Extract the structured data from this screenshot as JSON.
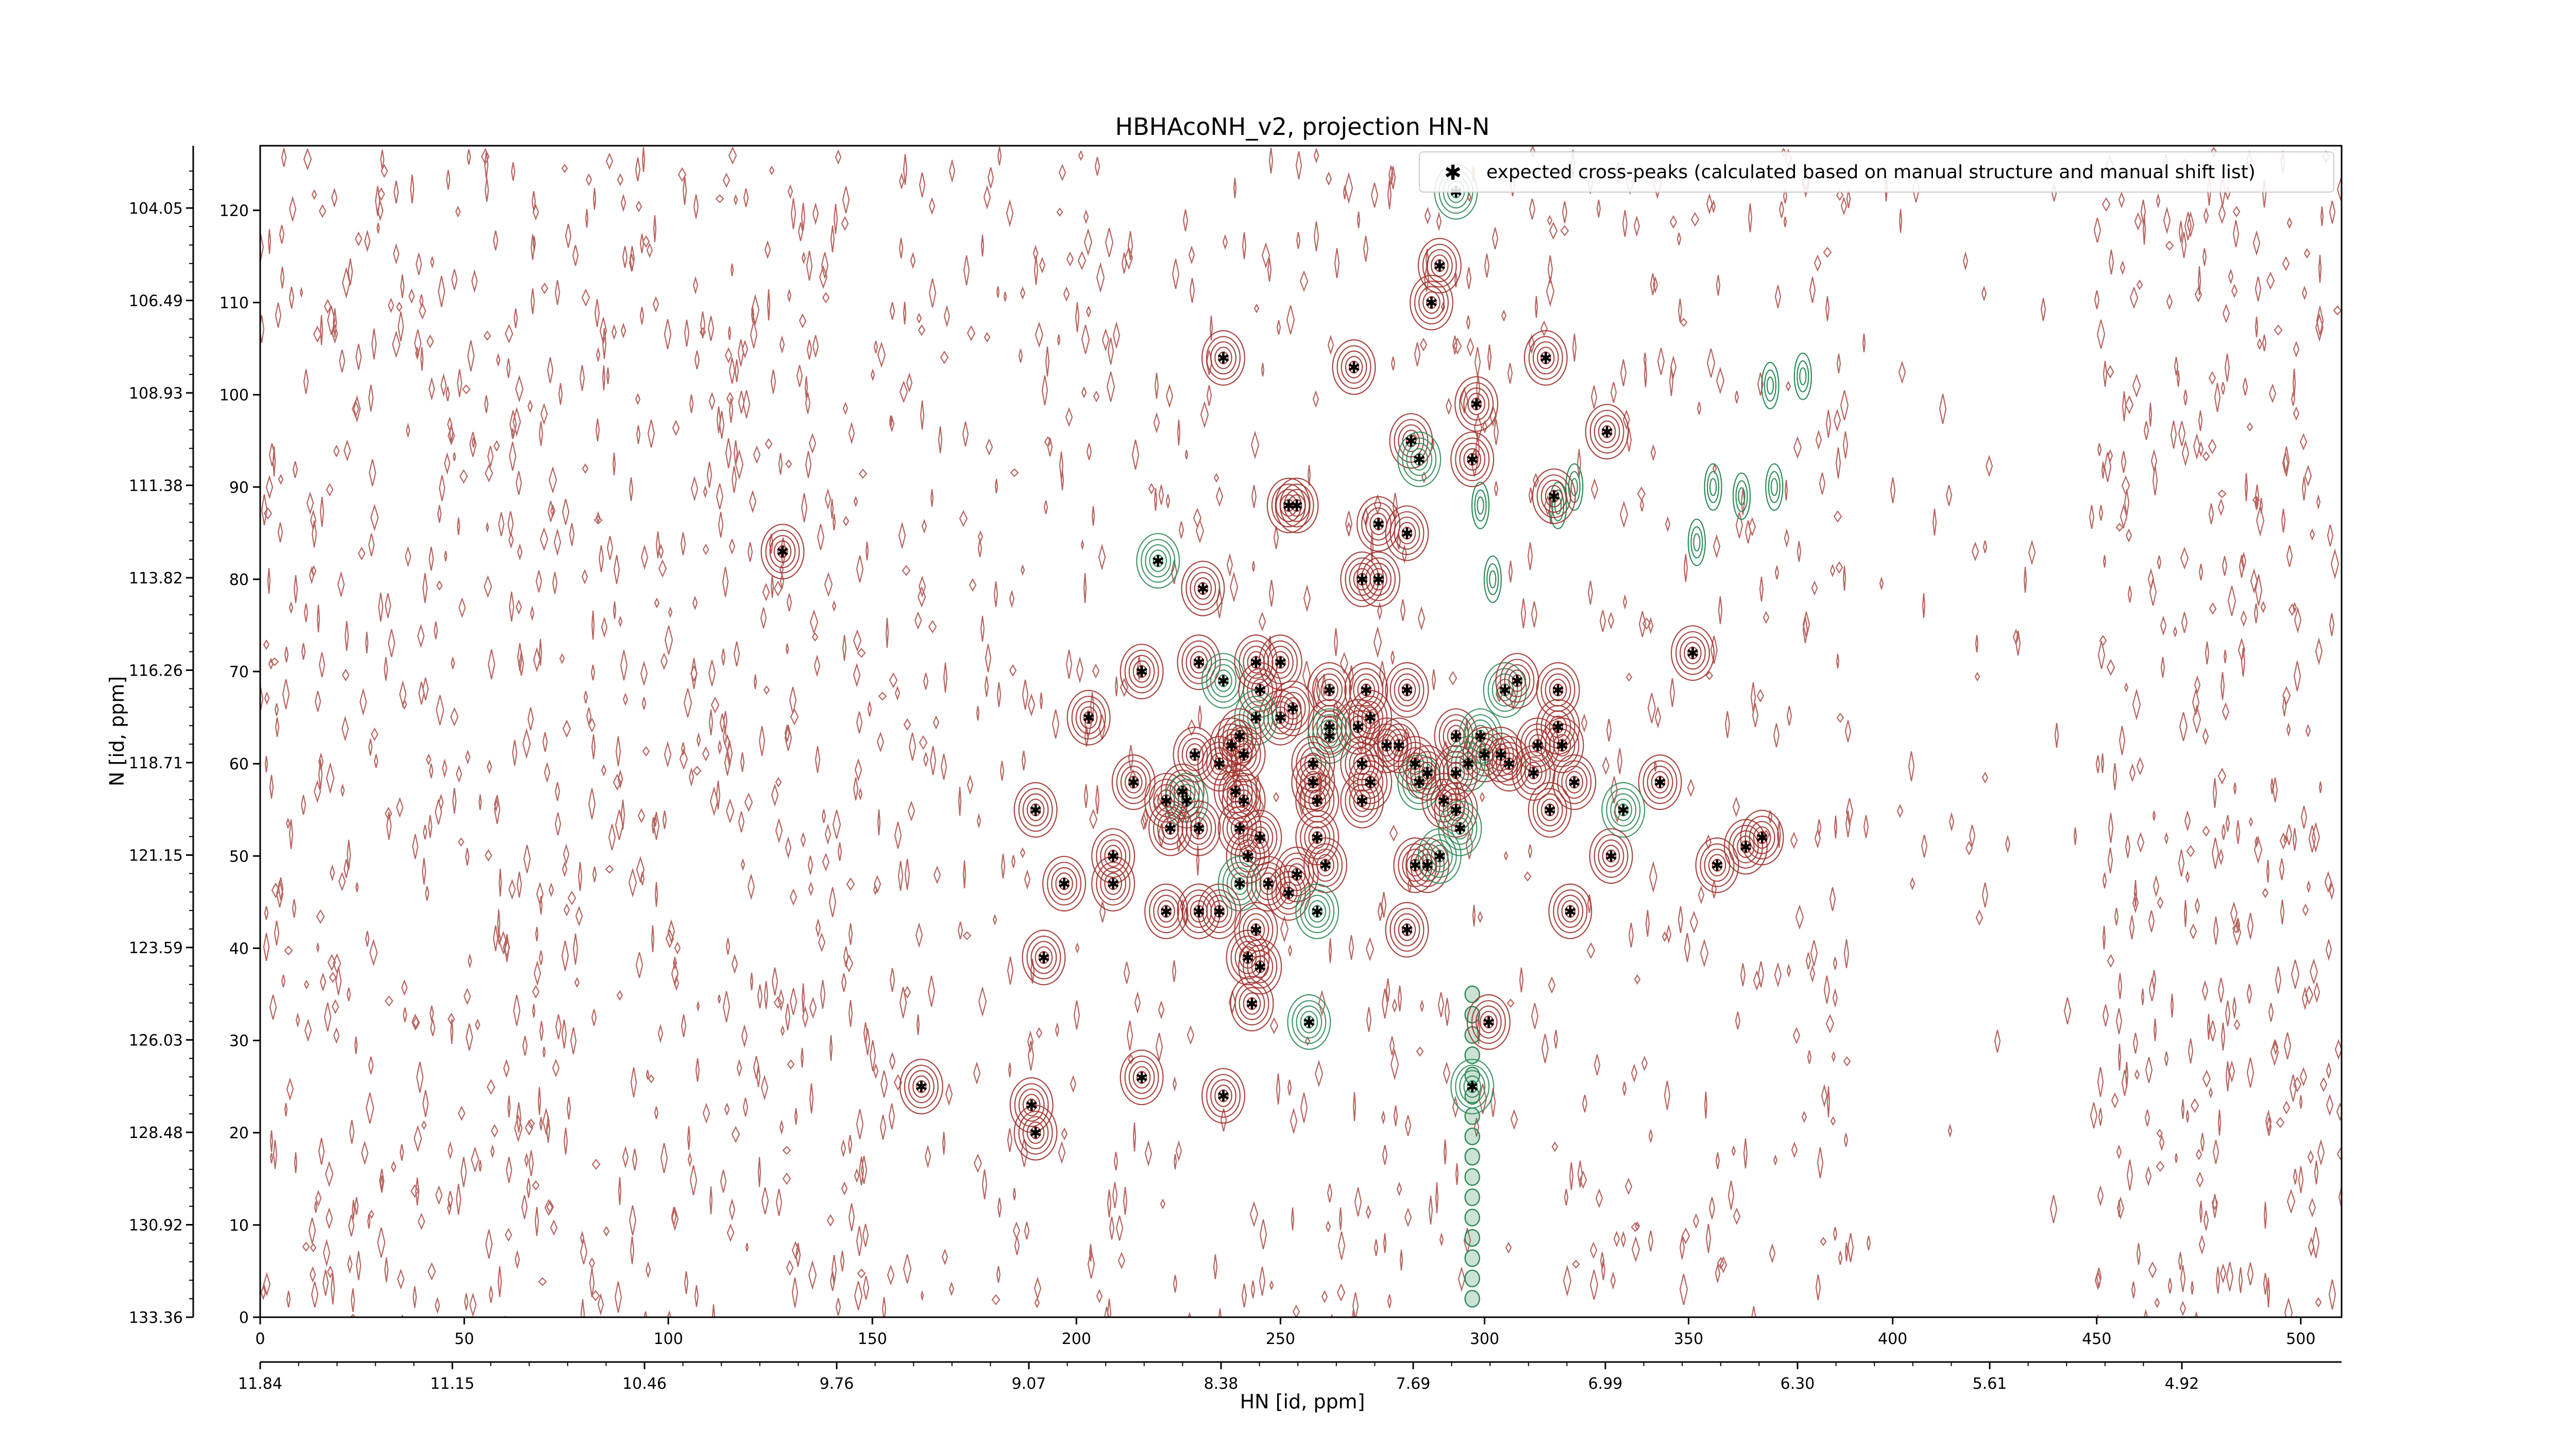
{
  "chart_data": {
    "type": "scatter",
    "title": "HBHAcoNH_v2, projection HN-N",
    "xlabel": "HN [id, ppm]",
    "ylabel": "N [id, ppm]",
    "x_index_range": [
      0,
      510
    ],
    "y_index_range": [
      0,
      127
    ],
    "x_index_ticks": [
      "0",
      "50",
      "100",
      "150",
      "200",
      "250",
      "300",
      "350",
      "400",
      "450",
      "500"
    ],
    "y_index_ticks": [
      "0",
      "10",
      "20",
      "30",
      "40",
      "50",
      "60",
      "70",
      "80",
      "90",
      "100",
      "110",
      "120"
    ],
    "hn_ppm_ticks": [
      "11.84",
      "11.15",
      "10.46",
      "9.76",
      "9.07",
      "8.38",
      "7.69",
      "6.99",
      "6.30",
      "5.61",
      "4.92"
    ],
    "n_ppm_ticks": [
      "104.05",
      "106.49",
      "108.93",
      "111.38",
      "113.82",
      "116.26",
      "118.71",
      "121.15",
      "123.59",
      "126.03",
      "128.48",
      "130.92",
      "133.36"
    ],
    "legend": {
      "placement": "top-right",
      "label": "expected cross-peaks (calculated based on manual structure and manual shift list)"
    },
    "colors": {
      "positive_contour": "#a0302a",
      "negative_contour": "#2e8b57",
      "marker": "#0000ee"
    },
    "series": [
      {
        "name": "expected cross-peaks (calculated based on manual structure and manual shift list)",
        "points": [
          [
            128,
            83
          ],
          [
            236,
            104
          ],
          [
            268,
            103
          ],
          [
            293,
            122
          ],
          [
            289,
            114
          ],
          [
            287,
            110
          ],
          [
            298,
            99
          ],
          [
            315,
            104
          ],
          [
            330,
            96
          ],
          [
            282,
            95
          ],
          [
            284,
            93
          ],
          [
            297,
            93
          ],
          [
            317,
            89
          ],
          [
            252,
            88
          ],
          [
            254,
            88
          ],
          [
            274,
            86
          ],
          [
            281,
            85
          ],
          [
            220,
            82
          ],
          [
            231,
            79
          ],
          [
            270,
            80
          ],
          [
            274,
            80
          ],
          [
            351,
            72
          ],
          [
            216,
            70
          ],
          [
            230,
            71
          ],
          [
            236,
            69
          ],
          [
            244,
            71
          ],
          [
            250,
            71
          ],
          [
            245,
            68
          ],
          [
            262,
            68
          ],
          [
            271,
            68
          ],
          [
            281,
            68
          ],
          [
            305,
            68
          ],
          [
            308,
            69
          ],
          [
            318,
            68
          ],
          [
            253,
            66
          ],
          [
            262,
            64
          ],
          [
            269,
            64
          ],
          [
            250,
            65
          ],
          [
            244,
            65
          ],
          [
            240,
            63
          ],
          [
            238,
            62
          ],
          [
            203,
            65
          ],
          [
            276,
            62
          ],
          [
            279,
            62
          ],
          [
            293,
            63
          ],
          [
            299,
            63
          ],
          [
            300,
            61
          ],
          [
            304,
            61
          ],
          [
            318,
            64
          ],
          [
            313,
            62
          ],
          [
            319,
            62
          ],
          [
            272,
            65
          ],
          [
            262,
            63
          ],
          [
            229,
            61
          ],
          [
            241,
            61
          ],
          [
            235,
            60
          ],
          [
            258,
            60
          ],
          [
            270,
            60
          ],
          [
            283,
            60
          ],
          [
            296,
            60
          ],
          [
            306,
            60
          ],
          [
            214,
            58
          ],
          [
            226,
            57
          ],
          [
            239,
            57
          ],
          [
            258,
            58
          ],
          [
            272,
            58
          ],
          [
            284,
            58
          ],
          [
            286,
            59
          ],
          [
            293,
            59
          ],
          [
            312,
            59
          ],
          [
            322,
            58
          ],
          [
            343,
            58
          ],
          [
            222,
            56
          ],
          [
            227,
            56
          ],
          [
            241,
            56
          ],
          [
            259,
            56
          ],
          [
            270,
            56
          ],
          [
            290,
            56
          ],
          [
            293,
            55
          ],
          [
            316,
            55
          ],
          [
            334,
            55
          ],
          [
            190,
            55
          ],
          [
            223,
            53
          ],
          [
            230,
            53
          ],
          [
            240,
            53
          ],
          [
            245,
            52
          ],
          [
            259,
            52
          ],
          [
            294,
            53
          ],
          [
            209,
            50
          ],
          [
            242,
            50
          ],
          [
            254,
            48
          ],
          [
            261,
            49
          ],
          [
            283,
            49
          ],
          [
            286,
            49
          ],
          [
            289,
            50
          ],
          [
            331,
            50
          ],
          [
            357,
            49
          ],
          [
            364,
            51
          ],
          [
            368,
            52
          ],
          [
            197,
            47
          ],
          [
            209,
            47
          ],
          [
            240,
            47
          ],
          [
            247,
            47
          ],
          [
            252,
            46
          ],
          [
            222,
            44
          ],
          [
            230,
            44
          ],
          [
            235,
            44
          ],
          [
            244,
            42
          ],
          [
            259,
            44
          ],
          [
            281,
            42
          ],
          [
            321,
            44
          ],
          [
            242,
            39
          ],
          [
            245,
            38
          ],
          [
            192,
            39
          ],
          [
            243,
            34
          ],
          [
            257,
            32
          ],
          [
            301,
            32
          ],
          [
            162,
            25
          ],
          [
            216,
            26
          ],
          [
            236,
            24
          ],
          [
            189,
            23
          ],
          [
            190,
            20
          ],
          [
            297,
            25
          ]
        ]
      }
    ]
  }
}
